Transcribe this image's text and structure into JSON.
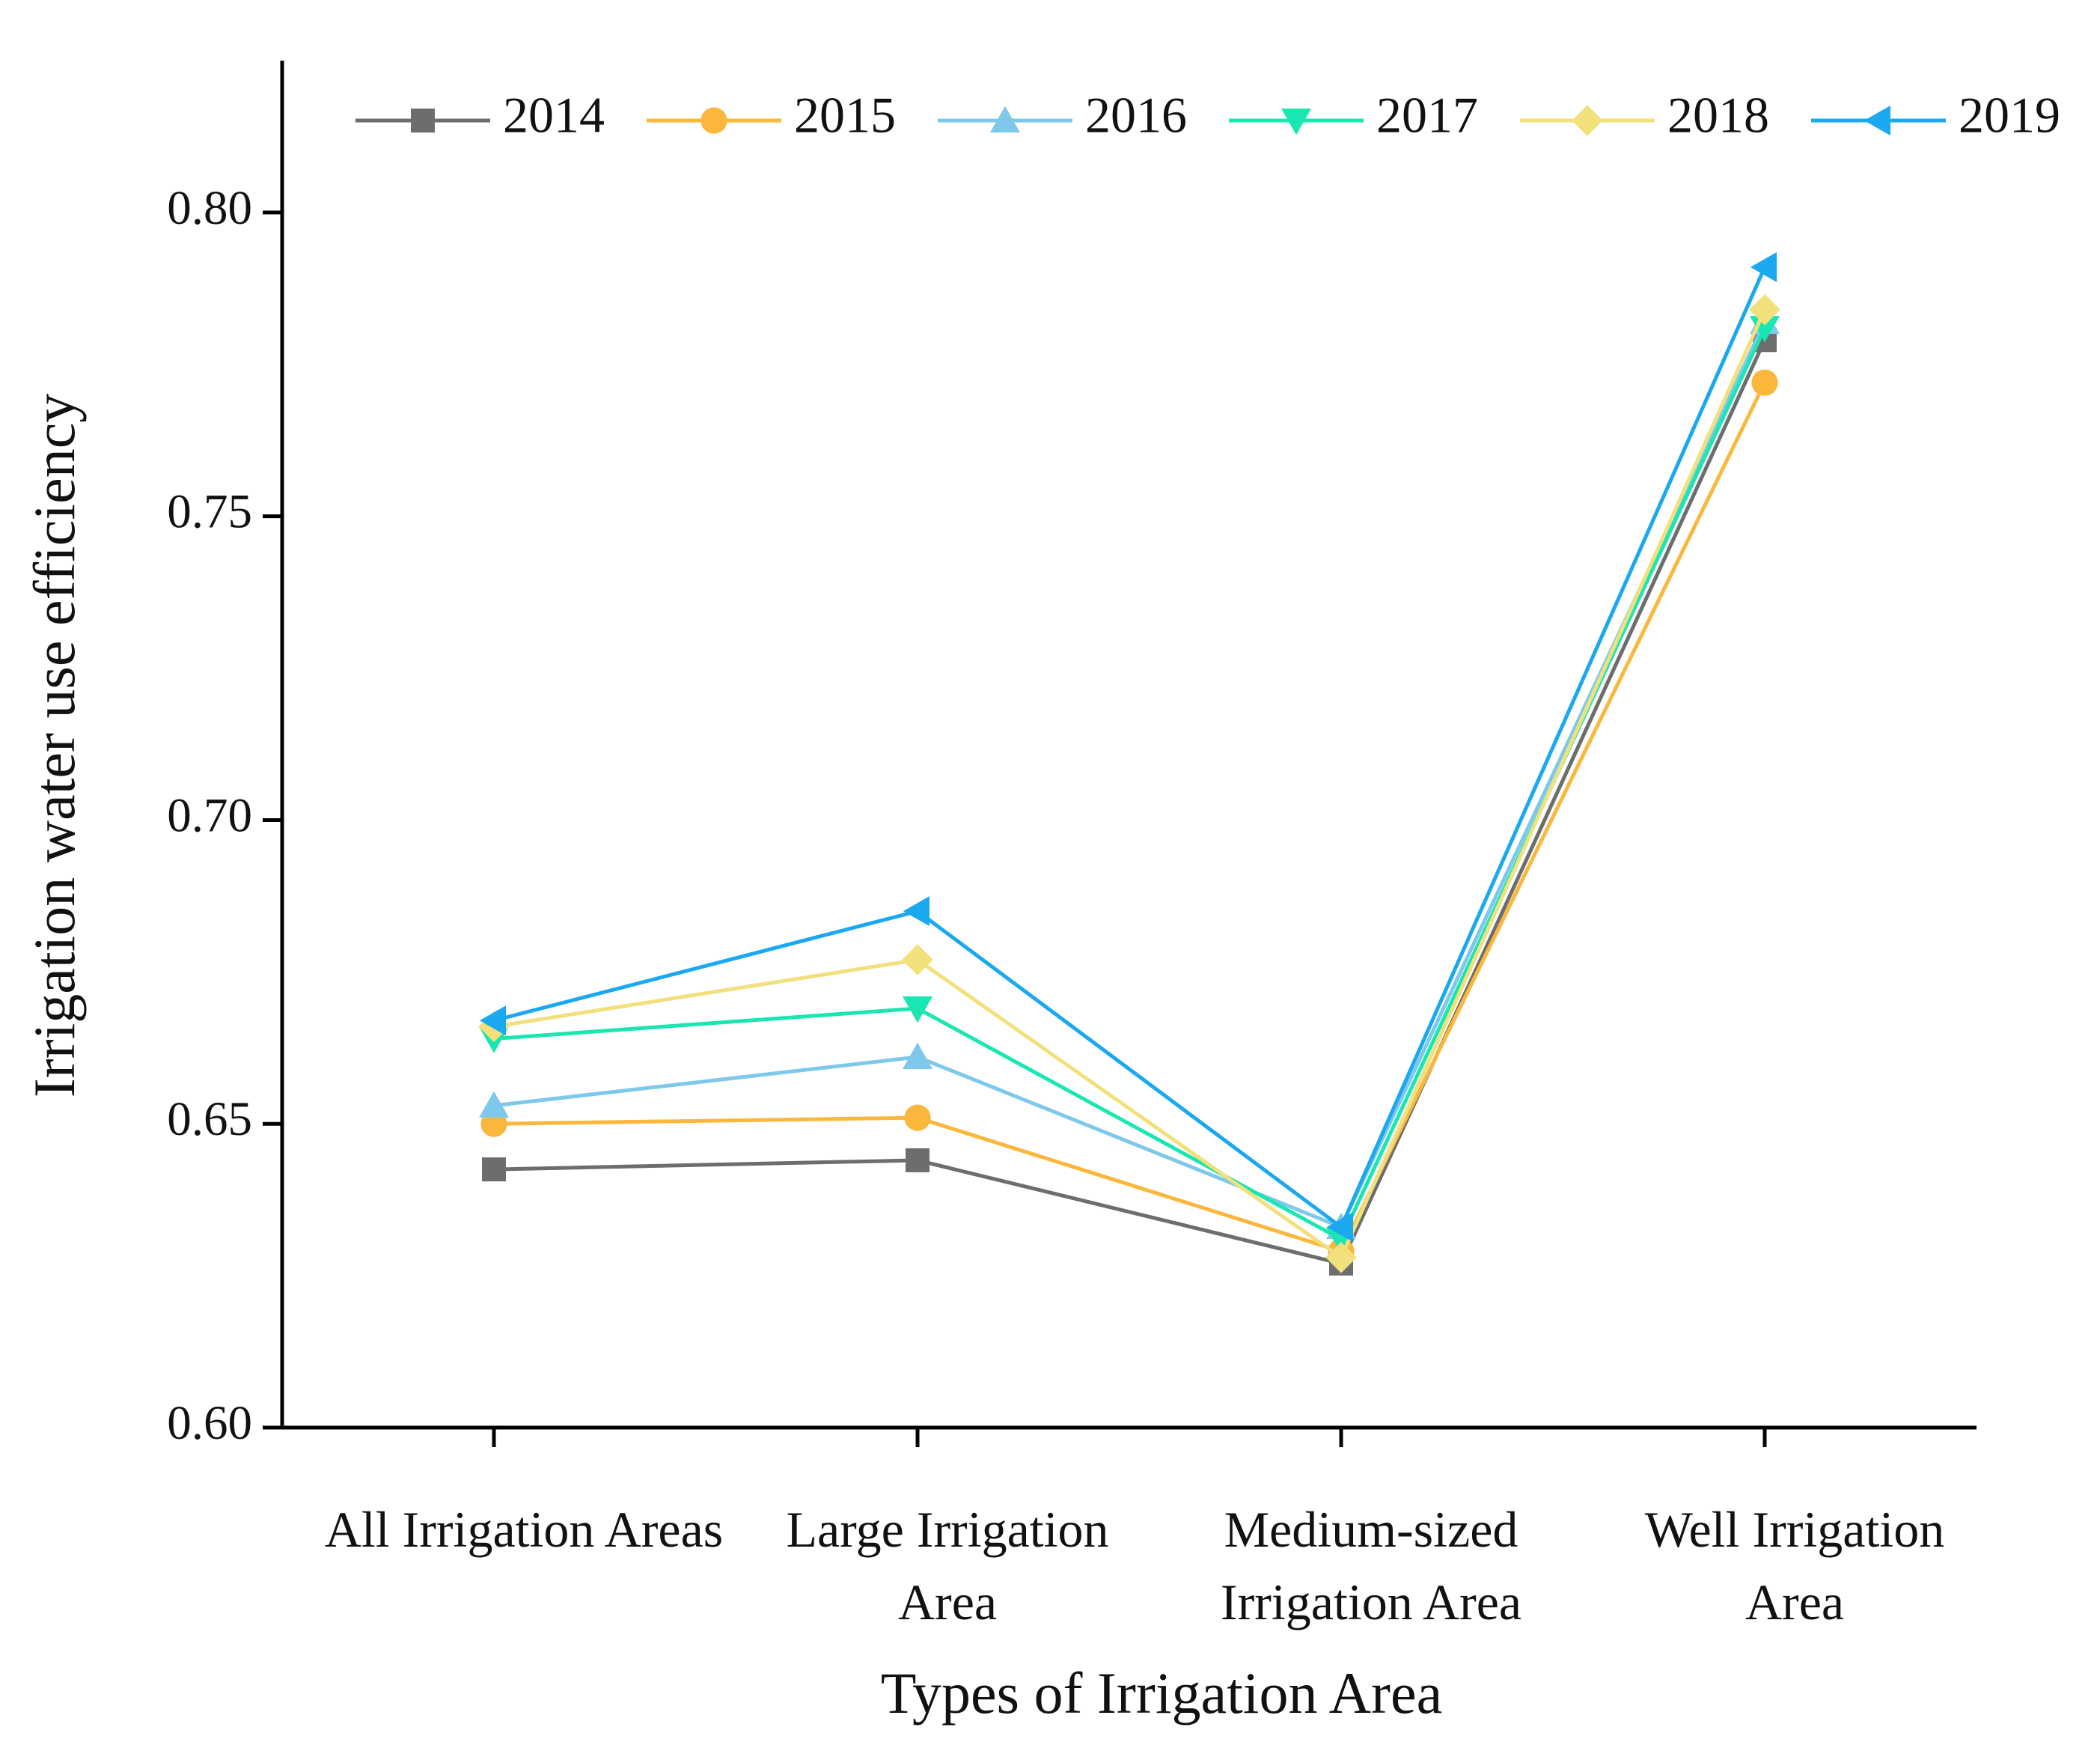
{
  "chart_data": {
    "type": "line",
    "x_label": "Types of Irrigation Area",
    "y_label": "Irrigation water use efficiency",
    "categories": [
      "All Irrigation Areas",
      "Large Irrigation Area",
      "Medium-sized Irrigation Area",
      "Well Irrigation Area"
    ],
    "ylim": [
      0.6,
      0.825
    ],
    "yticks": [
      {
        "value": 0.6,
        "label": "0.60"
      },
      {
        "value": 0.65,
        "label": "0.65"
      },
      {
        "value": 0.7,
        "label": "0.70"
      },
      {
        "value": 0.75,
        "label": "0.75"
      },
      {
        "value": 0.8,
        "label": "0.80"
      }
    ],
    "legend_position": "top",
    "series": [
      {
        "name": "2014",
        "color": "#6d6d6d",
        "marker": "square",
        "values": [
          0.6425,
          0.644,
          0.627,
          0.779
        ]
      },
      {
        "name": "2015",
        "color": "#fbb73c",
        "marker": "circle",
        "values": [
          0.65,
          0.651,
          0.629,
          0.772
        ]
      },
      {
        "name": "2016",
        "color": "#7ec8ec",
        "marker": "triangle-up",
        "values": [
          0.653,
          0.661,
          0.633,
          0.782
        ]
      },
      {
        "name": "2017",
        "color": "#19e6b0",
        "marker": "triangle-down",
        "values": [
          0.664,
          0.669,
          0.631,
          0.781
        ]
      },
      {
        "name": "2018",
        "color": "#f2e07c",
        "marker": "diamond",
        "values": [
          0.666,
          0.677,
          0.628,
          0.784
        ]
      },
      {
        "name": "2019",
        "color": "#1aa8f0",
        "marker": "triangle-left",
        "values": [
          0.667,
          0.685,
          0.633,
          0.791
        ]
      }
    ]
  }
}
